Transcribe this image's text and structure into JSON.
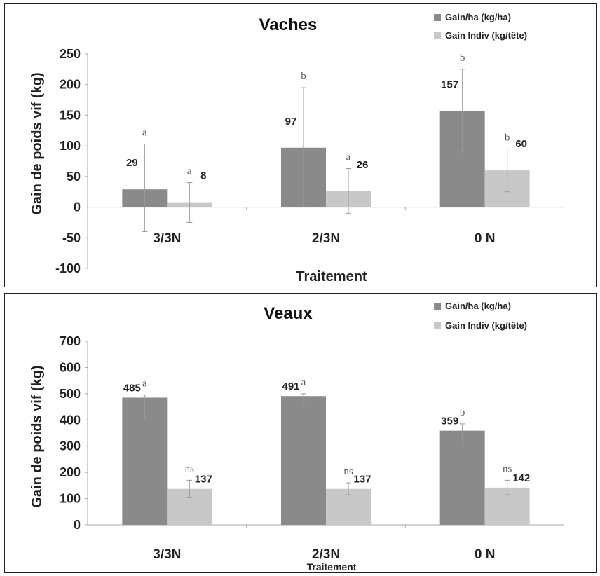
{
  "colors": {
    "series1": "#8a8a8a",
    "series2": "#c8c8c8",
    "axis": "#aaaaaa",
    "errorbar": "#9a9a9a"
  },
  "chart_data": [
    {
      "type": "bar",
      "title": "Vaches",
      "xlabel": "Traitement",
      "ylabel": "Gain de poids vif (kg)",
      "categories": [
        "3/3N",
        "2/3N",
        "0 N"
      ],
      "ylim": [
        -100,
        250
      ],
      "yticks": [
        250,
        200,
        150,
        100,
        50,
        0,
        -50,
        -100
      ],
      "legend_position": "top-right",
      "series": [
        {
          "name": "Gain/ha (kg/ha)",
          "values": [
            29,
            97,
            157
          ],
          "labels": [
            "29",
            "97",
            "157"
          ],
          "err_low": [
            -40,
            0,
            90
          ],
          "err_high": [
            103,
            195,
            225
          ],
          "significance": [
            "a",
            "b",
            "b"
          ]
        },
        {
          "name": "Gain Indiv (kg/tête)",
          "values": [
            8,
            26,
            60
          ],
          "labels": [
            "8",
            "26",
            "60"
          ],
          "err_low": [
            -25,
            -10,
            25
          ],
          "err_high": [
            40,
            63,
            95
          ],
          "significance": [
            "a",
            "a",
            "b"
          ]
        }
      ]
    },
    {
      "type": "bar",
      "title": "Veaux",
      "xlabel": "Traitement",
      "ylabel": "Gain de poids vif (kg)",
      "categories": [
        "3/3N",
        "2/3N",
        "0 N"
      ],
      "ylim": [
        0,
        700
      ],
      "yticks": [
        700,
        600,
        500,
        400,
        300,
        200,
        100,
        0
      ],
      "legend_position": "top-right",
      "series": [
        {
          "name": "Gain/ha (kg/ha)",
          "values": [
            485,
            491,
            359
          ],
          "labels": [
            "485",
            "491",
            "359"
          ],
          "err_low": [
            400,
            455,
            300
          ],
          "err_high": [
            495,
            500,
            385
          ],
          "significance": [
            "a",
            "a",
            "b"
          ]
        },
        {
          "name": "Gain Indiv (kg/tête)",
          "values": [
            137,
            137,
            142
          ],
          "labels": [
            "137",
            "137",
            "142"
          ],
          "err_low": [
            105,
            115,
            115
          ],
          "err_high": [
            170,
            160,
            170
          ],
          "significance": [
            "ns",
            "ns",
            "ns"
          ]
        }
      ]
    }
  ]
}
